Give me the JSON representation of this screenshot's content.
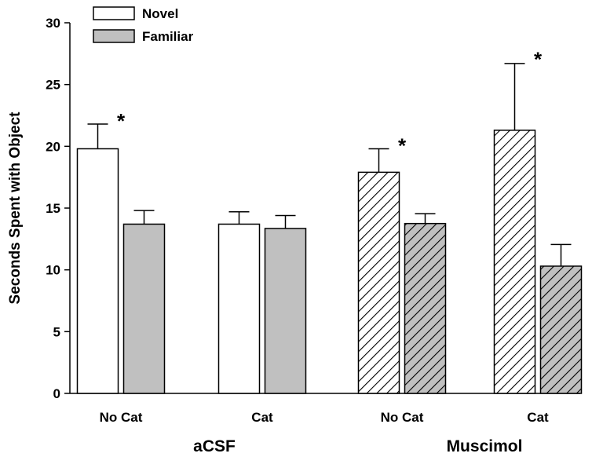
{
  "chart_data": {
    "type": "bar",
    "title": "",
    "xlabel": "",
    "ylabel": "Seconds Spent with Object",
    "ylim": [
      0,
      30
    ],
    "yticks": [
      0,
      5,
      10,
      15,
      20,
      25,
      30
    ],
    "grid": false,
    "legend_position": "top-left",
    "categories": [
      "No Cat",
      "Cat",
      "No Cat",
      "Cat"
    ],
    "groups": [
      {
        "label": "aCSF",
        "categories": [
          0,
          1
        ]
      },
      {
        "label": "Muscimol",
        "categories": [
          2,
          3
        ]
      }
    ],
    "series": [
      {
        "name": "Novel",
        "values": [
          19.8,
          13.7,
          17.9,
          21.3
        ],
        "errors": [
          2.0,
          1.0,
          1.9,
          5.4
        ],
        "fill": "#ffffff",
        "hatched": [
          false,
          false,
          true,
          true
        ]
      },
      {
        "name": "Familiar",
        "values": [
          13.7,
          13.35,
          13.75,
          10.3
        ],
        "errors": [
          1.1,
          1.05,
          0.8,
          1.75
        ],
        "fill": "#c0c0c0",
        "hatched": [
          false,
          false,
          true,
          true
        ]
      }
    ],
    "annotations": [
      {
        "text": "*",
        "category": 0,
        "y": 22.5
      },
      {
        "text": "*",
        "category": 2,
        "y": 20.5
      },
      {
        "text": "*",
        "category": 3,
        "y": 27.5
      }
    ],
    "colors": {
      "axis": "#000000",
      "novel_fill": "#ffffff",
      "familiar_fill": "#c0c0c0"
    }
  }
}
